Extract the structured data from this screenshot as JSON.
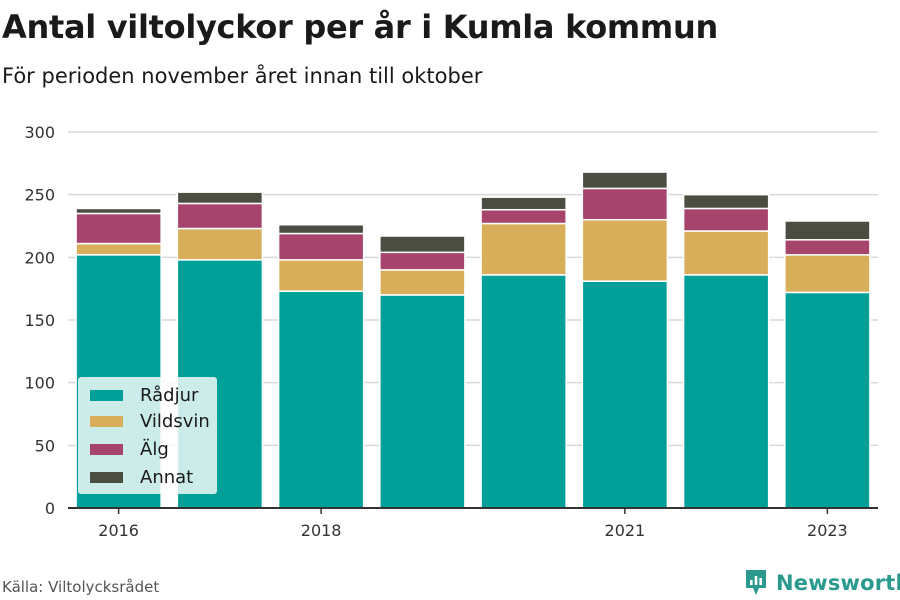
{
  "title": "Antal viltolyckor per år i Kumla kommun",
  "subtitle": "För perioden november året innan till oktober",
  "source": "Källa: Viltolycksrådet",
  "brand": "Newsworthy",
  "colors": {
    "radjur": "#00a098",
    "vildsvin": "#d8ae5b",
    "alg": "#a6446b",
    "annat": "#4b4d40",
    "grid": "#d9d9d9",
    "axis": "#333333",
    "brand": "#2a9a8e"
  },
  "chart_data": {
    "type": "bar",
    "stacked": true,
    "categories": [
      "2016",
      "2017",
      "2018",
      "2019",
      "2020",
      "2021",
      "2022",
      "2023"
    ],
    "x_tick_labels": [
      "2016",
      "",
      "2018",
      "",
      "",
      "2021",
      "",
      "2023"
    ],
    "series": [
      {
        "name": "Rådjur",
        "color": "#00a098",
        "values": [
          202,
          198,
          173,
          170,
          186,
          181,
          186,
          172
        ]
      },
      {
        "name": "Vildsvin",
        "color": "#d8ae5b",
        "values": [
          9,
          25,
          25,
          20,
          41,
          49,
          35,
          30
        ]
      },
      {
        "name": "Älg",
        "color": "#a6446b",
        "values": [
          24,
          20,
          21,
          14,
          11,
          25,
          18,
          12
        ]
      },
      {
        "name": "Annat",
        "color": "#4b4d40",
        "values": [
          4,
          9,
          7,
          13,
          10,
          13,
          11,
          15
        ]
      }
    ],
    "ylim": [
      0,
      300
    ],
    "y_ticks": [
      0,
      50,
      100,
      150,
      200,
      250,
      300
    ],
    "grid": true,
    "legend_position": "bottom-left"
  }
}
